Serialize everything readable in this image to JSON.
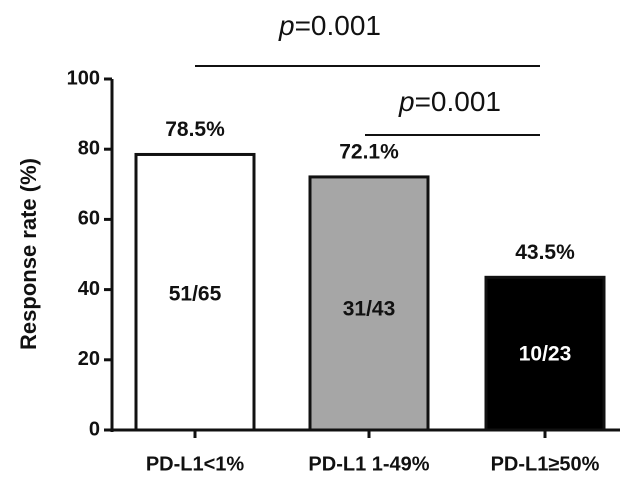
{
  "chart_data": {
    "type": "bar",
    "y_label": "Response rate (%)",
    "categories": [
      "PD-L1<1%",
      "PD-L1 1-49%",
      "PD-L1≥50%"
    ],
    "values": [
      78.5,
      72.1,
      43.5
    ],
    "value_labels": [
      "78.5%",
      "72.1%",
      "43.5%"
    ],
    "counts": [
      "51/65",
      "31/43",
      "10/23"
    ],
    "colors": [
      "#ffffff",
      "#a6a6a6",
      "#000000"
    ],
    "count_colors": [
      "#111111",
      "#111111",
      "#ffffff"
    ],
    "ylim": [
      0,
      100
    ],
    "yticks": [
      0,
      20,
      40,
      60,
      80,
      100
    ],
    "annotations": [
      {
        "italic": "p",
        "text": "=0.001"
      },
      {
        "italic": "p",
        "text": "=0.001"
      }
    ]
  }
}
